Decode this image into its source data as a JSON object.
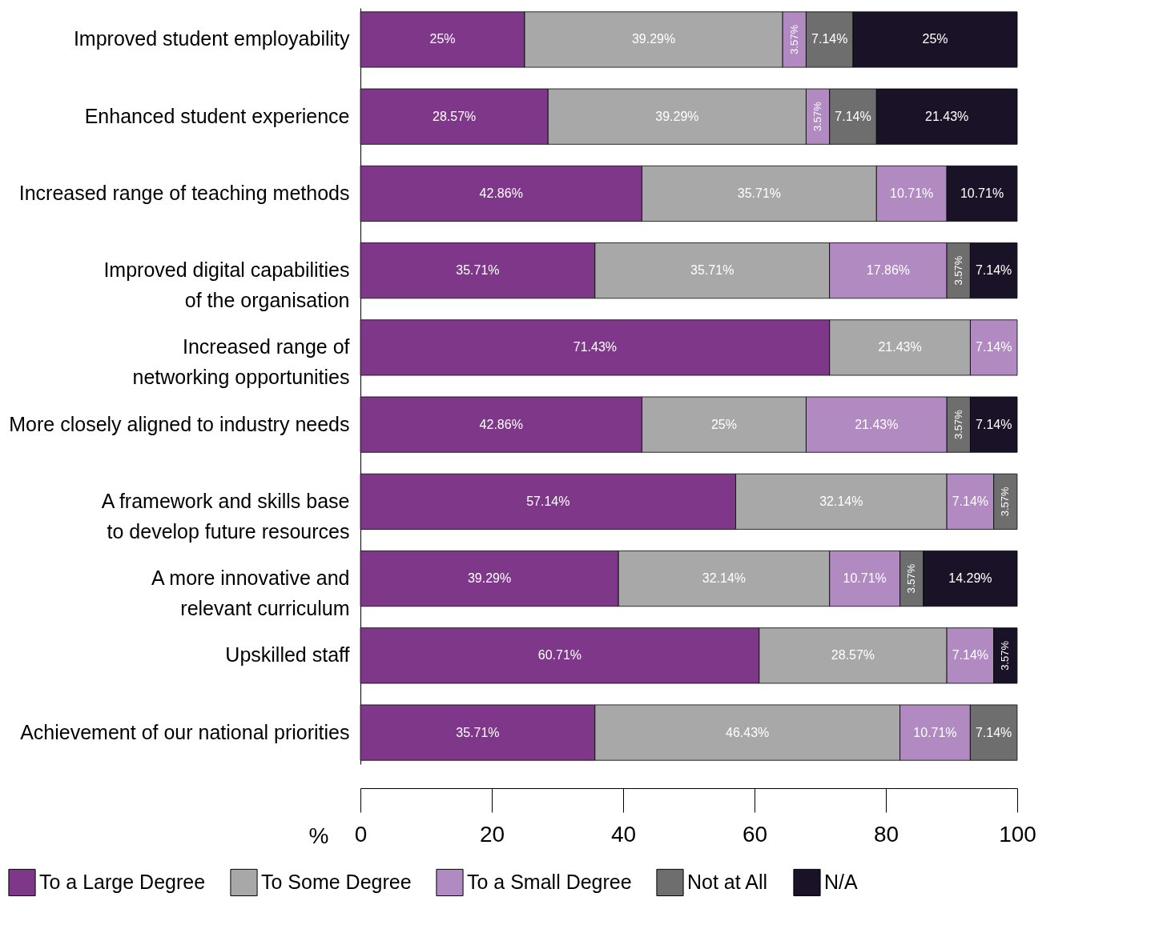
{
  "chart_data": {
    "type": "bar",
    "orientation": "horizontal",
    "stacked": true,
    "xlabel": "%",
    "categories": [
      "Improved student employability",
      "Enhanced student experience",
      "Increased range of teaching methods",
      "Improved digital capabilities of the organisation",
      "Increased range of networking opportunities",
      "More closely aligned to industry needs",
      "A framework and skills base to develop future resources",
      "A more innovative and relevant curriculum",
      "Upskilled staff",
      "Achievement of our national priorities"
    ],
    "series": [
      {
        "name": "To a Large Degree",
        "color": "#7f3889",
        "values": [
          25,
          28.57,
          42.86,
          35.71,
          71.43,
          42.86,
          57.14,
          39.29,
          60.71,
          35.71
        ],
        "value_labels": [
          "25%",
          "28.57%",
          "42.86%",
          "35.71%",
          "71.43%",
          "42.86%",
          "57.14%",
          "39.29%",
          "60.71%",
          "35.71%"
        ]
      },
      {
        "name": "To Some Degree",
        "color": "#a8a8a8",
        "values": [
          39.29,
          39.29,
          35.71,
          35.71,
          21.43,
          25,
          32.14,
          32.14,
          28.57,
          46.43
        ],
        "value_labels": [
          "39.29%",
          "39.29%",
          "35.71%",
          "35.71%",
          "21.43%",
          "25%",
          "32.14%",
          "32.14%",
          "28.57%",
          "46.43%"
        ]
      },
      {
        "name": "To a Small Degree",
        "color": "#b08ac0",
        "values": [
          3.57,
          3.57,
          10.71,
          17.86,
          7.14,
          21.43,
          7.14,
          10.71,
          7.14,
          10.71
        ],
        "value_labels": [
          "3.57%",
          "3.57%",
          "10.71%",
          "17.86%",
          "7.14%",
          "21.43%",
          "7.14%",
          "10.71%",
          "7.14%",
          "10.71%"
        ]
      },
      {
        "name": "Not at All",
        "color": "#6e6e6e",
        "values": [
          7.14,
          7.14,
          null,
          3.57,
          null,
          3.57,
          3.57,
          3.57,
          null,
          7.14
        ],
        "value_labels": [
          "7.14%",
          "7.14%",
          null,
          "3.57%",
          null,
          "3.57%",
          "3.57%",
          "3.57%",
          null,
          "7.14%"
        ]
      },
      {
        "name": "N/A",
        "color": "#1a1226",
        "values": [
          25,
          21.43,
          10.71,
          7.14,
          null,
          7.14,
          null,
          14.29,
          3.57,
          null
        ],
        "value_labels": [
          "25%",
          "21.43%",
          "10.71%",
          "7.14%",
          null,
          "7.14%",
          null,
          "14.29%",
          "3.57%",
          null
        ]
      }
    ],
    "xlim": [
      0,
      100
    ],
    "xticks": [
      0,
      20,
      40,
      60,
      80,
      100
    ],
    "grid": false,
    "legend": "bottom"
  }
}
